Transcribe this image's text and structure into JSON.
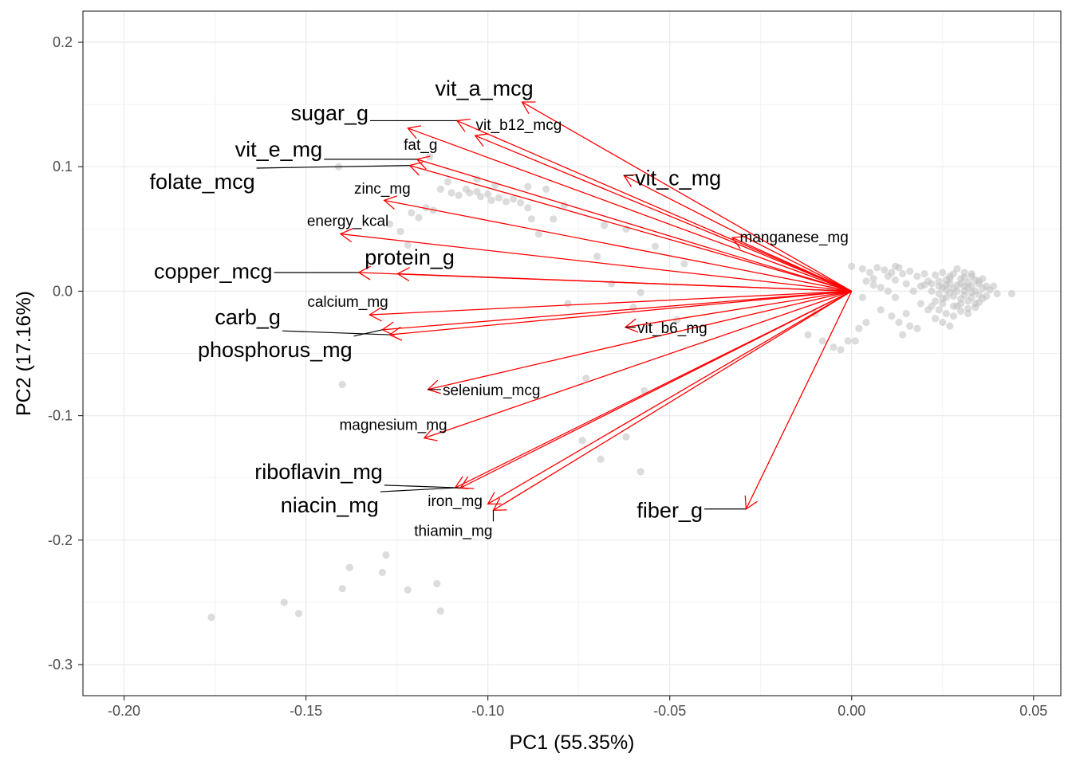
{
  "chart_data": {
    "type": "scatter",
    "subtype": "pca-biplot",
    "xlabel": "PC1 (55.35%)",
    "ylabel": "PC2 (17.16%)",
    "xlim": [
      -0.2113,
      0.0575
    ],
    "ylim": [
      -0.325,
      0.225
    ],
    "x_ticks": [
      -0.2,
      -0.15,
      -0.1,
      -0.05,
      0.0,
      0.05
    ],
    "x_tick_labels": [
      "-0.20",
      "-0.15",
      "-0.10",
      "-0.05",
      "0.00",
      "0.05"
    ],
    "y_ticks": [
      -0.3,
      -0.2,
      -0.1,
      0.0,
      0.1,
      0.2
    ],
    "y_tick_labels": [
      "-0.3",
      "-0.2",
      "-0.1",
      "0.0",
      "0.1",
      "0.2"
    ],
    "grid": true,
    "legend": "none",
    "colors": {
      "arrow": "#ff0000",
      "point": "#bfbfbf",
      "grid_major": "#ebebeb",
      "grid_minor": "#f2f2f2",
      "panel_border": "#333333",
      "label": "#000000",
      "leader": "#000000"
    },
    "loadings": [
      {
        "name": "vit_a_mcg",
        "x": -0.0906,
        "y": 0.152,
        "label_x": -0.101,
        "label_y": 0.163,
        "size": "large"
      },
      {
        "name": "sugar_g",
        "x": -0.1085,
        "y": 0.137,
        "label_x": -0.1435,
        "label_y": 0.143,
        "size": "large"
      },
      {
        "name": "vit_b12_mcg",
        "x": -0.1035,
        "y": 0.125,
        "label_x": -0.0915,
        "label_y": 0.133,
        "size": "small"
      },
      {
        "name": "fat_g",
        "x": -0.122,
        "y": 0.131,
        "label_x": -0.1185,
        "label_y": 0.117,
        "size": "small"
      },
      {
        "name": "vit_e_mg",
        "x": -0.1195,
        "y": 0.106,
        "label_x": -0.1575,
        "label_y": 0.114,
        "size": "large"
      },
      {
        "name": "folate_mcg",
        "x": -0.1215,
        "y": 0.101,
        "label_x": -0.1785,
        "label_y": 0.088,
        "size": "large"
      },
      {
        "name": "zinc_mg",
        "x": -0.1285,
        "y": 0.073,
        "label_x": -0.129,
        "label_y": 0.082,
        "size": "small"
      },
      {
        "name": "energy_kcal",
        "x": -0.1405,
        "y": 0.046,
        "label_x": -0.1385,
        "label_y": 0.056,
        "size": "small"
      },
      {
        "name": "vit_c_mg",
        "x": -0.0626,
        "y": 0.093,
        "label_x": -0.0477,
        "label_y": 0.091,
        "size": "large"
      },
      {
        "name": "manganese_mg",
        "x": -0.0328,
        "y": 0.043,
        "label_x": -0.0158,
        "label_y": 0.043,
        "size": "small"
      },
      {
        "name": "protein_g",
        "x": -0.1248,
        "y": 0.014,
        "label_x": -0.1215,
        "label_y": 0.027,
        "size": "large"
      },
      {
        "name": "copper_mcg",
        "x": -0.1355,
        "y": 0.015,
        "label_x": -0.1755,
        "label_y": 0.016,
        "size": "large"
      },
      {
        "name": "calcium_mg",
        "x": -0.1325,
        "y": -0.019,
        "label_x": -0.1385,
        "label_y": -0.009,
        "size": "small"
      },
      {
        "name": "carb_g",
        "x": -0.127,
        "y": -0.035,
        "label_x": -0.166,
        "label_y": -0.021,
        "size": "large"
      },
      {
        "name": "phosphorus_mg",
        "x": -0.129,
        "y": -0.031,
        "label_x": -0.1585,
        "label_y": -0.047,
        "size": "large"
      },
      {
        "name": "vit_b6_mg",
        "x": -0.0622,
        "y": -0.029,
        "label_x": -0.0493,
        "label_y": -0.03,
        "size": "small"
      },
      {
        "name": "selenium_mcg",
        "x": -0.1165,
        "y": -0.079,
        "label_x": -0.099,
        "label_y": -0.08,
        "size": "small"
      },
      {
        "name": "magnesium_mg",
        "x": -0.1175,
        "y": -0.118,
        "label_x": -0.126,
        "label_y": -0.108,
        "size": "small"
      },
      {
        "name": "riboflavin_mg",
        "x": -0.1075,
        "y": -0.158,
        "label_x": -0.1465,
        "label_y": -0.145,
        "size": "large"
      },
      {
        "name": "niacin_mg",
        "x": -0.109,
        "y": -0.158,
        "label_x": -0.1435,
        "label_y": -0.172,
        "size": "large"
      },
      {
        "name": "iron_mg",
        "x": -0.1,
        "y": -0.171,
        "label_x": -0.109,
        "label_y": -0.169,
        "size": "small"
      },
      {
        "name": "thiamin_mg",
        "x": -0.0985,
        "y": -0.176,
        "label_x": -0.1095,
        "label_y": -0.193,
        "size": "small"
      },
      {
        "name": "fiber_g",
        "x": -0.029,
        "y": -0.175,
        "label_x": -0.05,
        "label_y": -0.176,
        "size": "large"
      }
    ],
    "points": [
      [
        -0.176,
        -0.262
      ],
      [
        -0.156,
        -0.25
      ],
      [
        -0.152,
        -0.259
      ],
      [
        -0.14,
        -0.239
      ],
      [
        -0.138,
        -0.222
      ],
      [
        -0.128,
        -0.212
      ],
      [
        -0.129,
        -0.226
      ],
      [
        -0.122,
        -0.24
      ],
      [
        -0.114,
        -0.235
      ],
      [
        -0.113,
        -0.257
      ],
      [
        -0.14,
        -0.075
      ],
      [
        -0.141,
        0.1
      ],
      [
        -0.113,
        0.082
      ],
      [
        -0.11,
        0.079
      ],
      [
        -0.108,
        0.077
      ],
      [
        -0.106,
        0.082
      ],
      [
        -0.105,
        0.079
      ],
      [
        -0.103,
        0.08
      ],
      [
        -0.102,
        0.076
      ],
      [
        -0.1,
        0.078
      ],
      [
        -0.099,
        0.073
      ],
      [
        -0.097,
        0.075
      ],
      [
        -0.095,
        0.072
      ],
      [
        -0.103,
        0.09
      ],
      [
        -0.098,
        0.085
      ],
      [
        -0.093,
        0.074
      ],
      [
        -0.091,
        0.071
      ],
      [
        -0.089,
        0.067
      ],
      [
        -0.088,
        0.058
      ],
      [
        -0.084,
        0.082
      ],
      [
        -0.082,
        0.058
      ],
      [
        -0.079,
        0.069
      ],
      [
        -0.078,
        -0.01
      ],
      [
        -0.07,
        0.028
      ],
      [
        -0.068,
        0.053
      ],
      [
        -0.066,
        0.006
      ],
      [
        -0.062,
        0.05
      ],
      [
        -0.06,
        -0.013
      ],
      [
        -0.058,
        -0.001
      ],
      [
        -0.054,
        0.036
      ],
      [
        -0.048,
        -0.023
      ],
      [
        -0.046,
        0.022
      ],
      [
        -0.073,
        -0.07
      ],
      [
        -0.074,
        -0.12
      ],
      [
        -0.069,
        -0.135
      ],
      [
        -0.058,
        -0.145
      ],
      [
        -0.062,
        -0.117
      ],
      [
        -0.057,
        -0.08
      ],
      [
        -0.122,
        0.037
      ],
      [
        -0.119,
        0.059
      ],
      [
        -0.117,
        0.067
      ],
      [
        -0.115,
        0.065
      ],
      [
        -0.127,
        0.054
      ],
      [
        -0.124,
        0.048
      ],
      [
        -0.121,
        0.063
      ],
      [
        -0.116,
        0.108
      ],
      [
        -0.111,
        0.088
      ],
      [
        -0.089,
        0.084
      ],
      [
        -0.086,
        0.046
      ],
      [
        -0.012,
        -0.035
      ],
      [
        -0.008,
        -0.04
      ],
      [
        -0.005,
        -0.045
      ],
      [
        -0.003,
        -0.047
      ],
      [
        -0.001,
        -0.04
      ],
      [
        -0.01,
        -0.018
      ],
      [
        -0.006,
        0.002
      ],
      [
        0.0,
        0.02
      ],
      [
        0.003,
        0.018
      ],
      [
        0.005,
        0.015
      ],
      [
        0.007,
        0.019
      ],
      [
        0.009,
        0.017
      ],
      [
        0.011,
        0.015
      ],
      [
        0.012,
        0.02
      ],
      [
        0.014,
        0.014
      ],
      [
        0.013,
        0.019
      ],
      [
        0.016,
        0.016
      ],
      [
        0.018,
        0.012
      ],
      [
        0.02,
        0.014
      ],
      [
        0.004,
        0.008
      ],
      [
        0.006,
        0.01
      ],
      [
        0.008,
        0.003
      ],
      [
        0.01,
        0.0
      ],
      [
        0.012,
        -0.005
      ],
      [
        0.008,
        -0.015
      ],
      [
        0.011,
        -0.02
      ],
      [
        0.013,
        -0.025
      ],
      [
        0.015,
        -0.018
      ],
      [
        0.016,
        -0.028
      ],
      [
        0.019,
        -0.01
      ],
      [
        0.021,
        -0.015
      ],
      [
        0.004,
        -0.025
      ],
      [
        0.002,
        -0.03
      ],
      [
        0.001,
        -0.04
      ],
      [
        0.003,
        -0.005
      ],
      [
        0.006,
        0.005
      ],
      [
        0.02,
        0.005
      ],
      [
        0.022,
        0.0
      ],
      [
        0.023,
        -0.008
      ],
      [
        0.024,
        0.008
      ],
      [
        0.025,
        0.003
      ],
      [
        0.026,
        -0.005
      ],
      [
        0.027,
        0.01
      ],
      [
        0.028,
        0.002
      ],
      [
        0.029,
        -0.012
      ],
      [
        0.03,
        0.006
      ],
      [
        0.031,
        0.0
      ],
      [
        0.032,
        -0.008
      ],
      [
        0.033,
        0.004
      ],
      [
        0.034,
        0.009
      ],
      [
        0.035,
        -0.003
      ],
      [
        0.036,
        0.002
      ],
      [
        0.025,
        0.015
      ],
      [
        0.027,
        0.012
      ],
      [
        0.029,
        0.018
      ],
      [
        0.031,
        0.011
      ],
      [
        0.033,
        0.014
      ],
      [
        0.035,
        0.008
      ],
      [
        0.037,
        0.004
      ],
      [
        0.024,
        -0.015
      ],
      [
        0.026,
        -0.018
      ],
      [
        0.028,
        -0.02
      ],
      [
        0.03,
        -0.016
      ],
      [
        0.032,
        -0.014
      ],
      [
        0.034,
        -0.01
      ],
      [
        0.023,
        -0.022
      ],
      [
        0.025,
        -0.025
      ],
      [
        0.027,
        -0.028
      ],
      [
        0.022,
        -0.012
      ],
      [
        0.024,
        -0.002
      ],
      [
        0.026,
        0.005
      ],
      [
        0.028,
        -0.004
      ],
      [
        0.03,
        -0.006
      ],
      [
        0.032,
        0.007
      ],
      [
        0.034,
        0.0
      ],
      [
        0.036,
        -0.006
      ],
      [
        0.038,
        0.001
      ],
      [
        0.04,
        -0.002
      ],
      [
        0.044,
        -0.002
      ],
      [
        0.018,
        -0.03
      ],
      [
        0.014,
        -0.035
      ],
      [
        0.021,
        0.008
      ],
      [
        0.023,
        0.013
      ],
      [
        0.025,
        -0.01
      ],
      [
        0.027,
        -0.001
      ],
      [
        0.029,
        0.005
      ],
      [
        0.031,
        -0.003
      ],
      [
        0.033,
        -0.005
      ],
      [
        0.035,
        0.006
      ],
      [
        0.026,
        0.009
      ],
      [
        0.028,
        0.014
      ],
      [
        0.03,
        0.01
      ],
      [
        0.032,
        0.003
      ],
      [
        0.034,
        -0.013
      ],
      [
        0.036,
        0.01
      ],
      [
        0.024,
        0.004
      ],
      [
        0.022,
        0.006
      ],
      [
        0.03,
        -0.01
      ],
      [
        0.028,
        -0.012
      ],
      [
        0.026,
        0.001
      ],
      [
        0.031,
        0.015
      ],
      [
        0.033,
        0.012
      ],
      [
        0.035,
        -0.009
      ],
      [
        0.037,
        -0.004
      ],
      [
        0.039,
        0.004
      ],
      [
        0.025,
        -0.006
      ],
      [
        0.027,
        0.006
      ],
      [
        0.029,
        0.0
      ],
      [
        0.031,
        0.004
      ],
      [
        0.033,
        -0.001
      ],
      [
        0.032,
        -0.018
      ],
      [
        0.017,
        0.0
      ],
      [
        0.019,
        0.004
      ],
      [
        0.015,
        0.006
      ],
      [
        0.012,
        0.009
      ],
      [
        0.01,
        0.012
      ]
    ]
  }
}
